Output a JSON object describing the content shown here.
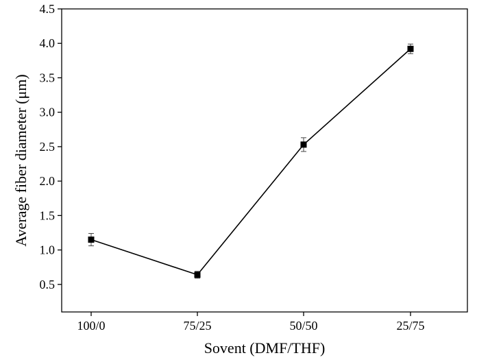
{
  "chart_data": {
    "type": "line",
    "title": "",
    "xlabel": "Sovent (DMF/THF)",
    "ylabel": "Average fiber diameter (μm)",
    "categories": [
      "100/0",
      "75/25",
      "50/50",
      "25/75"
    ],
    "series": [
      {
        "values": [
          1.15,
          0.64,
          2.53,
          3.92
        ],
        "errors": [
          0.09,
          0.05,
          0.1,
          0.07
        ],
        "color": "#000000",
        "marker": "square"
      }
    ],
    "ylim": [
      0.1,
      4.5
    ],
    "yticks": [
      0.5,
      1.0,
      1.5,
      2.0,
      2.5,
      3.0,
      3.5,
      4.0,
      4.5
    ],
    "ytick_labels": [
      "0.5",
      "1.0",
      "1.5",
      "2.0",
      "2.5",
      "3.0",
      "3.5",
      "4.0",
      "4.5"
    ],
    "grid": false,
    "legend": "none"
  }
}
